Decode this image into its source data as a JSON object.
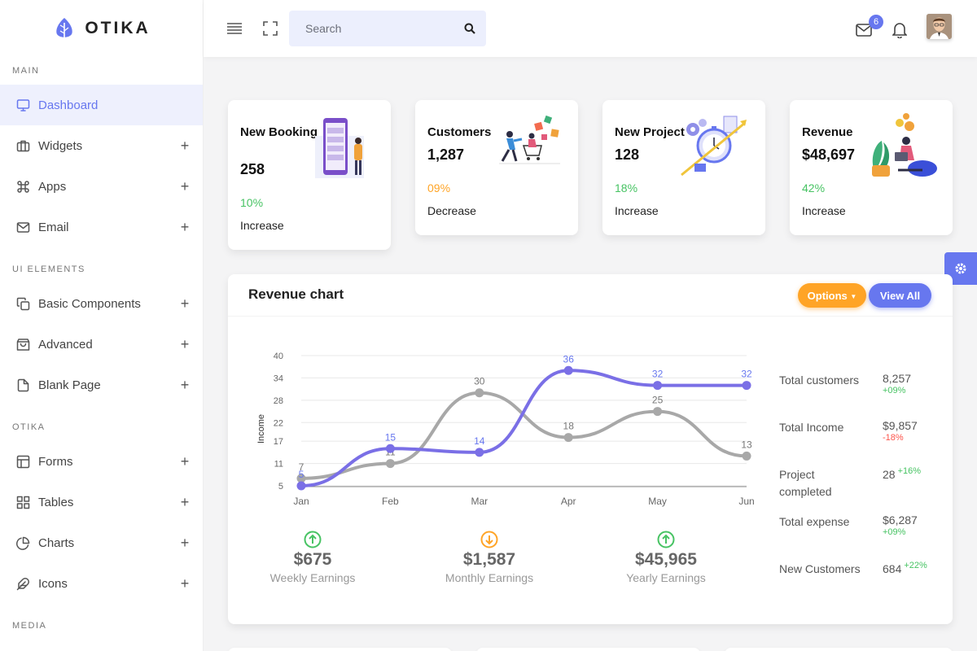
{
  "brand": {
    "name": "OTIKA"
  },
  "sidebar": {
    "sections": [
      {
        "header": "MAIN",
        "items": [
          {
            "label": "Dashboard",
            "icon": "monitor-icon",
            "active": true
          },
          {
            "label": "Widgets",
            "icon": "briefcase-icon"
          },
          {
            "label": "Apps",
            "icon": "command-icon"
          },
          {
            "label": "Email",
            "icon": "mail-icon"
          }
        ]
      },
      {
        "header": "UI ELEMENTS",
        "items": [
          {
            "label": "Basic Components",
            "icon": "copy-icon"
          },
          {
            "label": "Advanced",
            "icon": "shopping-bag-icon"
          },
          {
            "label": "Blank Page",
            "icon": "file-icon"
          }
        ]
      },
      {
        "header": "OTIKA",
        "items": [
          {
            "label": "Forms",
            "icon": "layout-icon"
          },
          {
            "label": "Tables",
            "icon": "grid-icon"
          },
          {
            "label": "Charts",
            "icon": "pie-chart-icon"
          },
          {
            "label": "Icons",
            "icon": "feather-icon"
          }
        ]
      },
      {
        "header": "MEDIA",
        "items": []
      }
    ]
  },
  "topbar": {
    "search_placeholder": "Search",
    "mail_badge": "6"
  },
  "stats": [
    {
      "title": "New Booking",
      "value": "258",
      "pct": "10%",
      "trend": "Increase",
      "color": "#47c363"
    },
    {
      "title": "Customers",
      "value": "1,287",
      "pct": "09%",
      "trend": "Decrease",
      "color": "#ffa426"
    },
    {
      "title": "New Project",
      "value": "128",
      "pct": "18%",
      "trend": "Increase",
      "color": "#47c363"
    },
    {
      "title": "Revenue",
      "value": "$48,697",
      "pct": "42%",
      "trend": "Increase",
      "color": "#47c363"
    }
  ],
  "revenue_chart": {
    "title": "Revenue chart",
    "options_label": "Options",
    "view_all_label": "View All",
    "earnings": [
      {
        "value": "$675",
        "label": "Weekly Earnings",
        "direction": "up",
        "color": "#47c363"
      },
      {
        "value": "$1,587",
        "label": "Monthly Earnings",
        "direction": "down",
        "color": "#ffa426"
      },
      {
        "value": "$45,965",
        "label": "Yearly Earnings",
        "direction": "up",
        "color": "#47c363"
      }
    ],
    "summary": [
      {
        "label": "Total customers",
        "value": "8,257",
        "delta": "+09%",
        "delta_color": "#47c363",
        "delta_inline": false
      },
      {
        "label": "Total Income",
        "value": "$9,857",
        "delta": "-18%",
        "delta_color": "#fc544b",
        "delta_inline": false
      },
      {
        "label": "Project completed",
        "value": "28",
        "delta": "+16%",
        "delta_color": "#47c363",
        "delta_inline": true
      },
      {
        "label": "Total expense",
        "value": "$6,287",
        "delta": "+09%",
        "delta_color": "#47c363",
        "delta_inline": false
      },
      {
        "label": "New Customers",
        "value": "684",
        "delta": "+22%",
        "delta_color": "#47c363",
        "delta_inline": true
      }
    ]
  },
  "chart_data": {
    "type": "line",
    "x": [
      "Jan",
      "Feb",
      "Mar",
      "Apr",
      "May",
      "Jun"
    ],
    "ylabel": "Income",
    "yticks": [
      5,
      11,
      17,
      22,
      28,
      34,
      40
    ],
    "ylim": [
      5,
      40
    ],
    "series": [
      {
        "values": [
          5,
          15,
          14,
          36,
          32,
          32
        ],
        "color": "#7a6fe6"
      },
      {
        "values": [
          7,
          11,
          30,
          18,
          25,
          13
        ],
        "color": "#a8a8a8"
      }
    ],
    "colors": {
      "primary": "#6777ef",
      "grid": "#e8e8e8"
    }
  }
}
